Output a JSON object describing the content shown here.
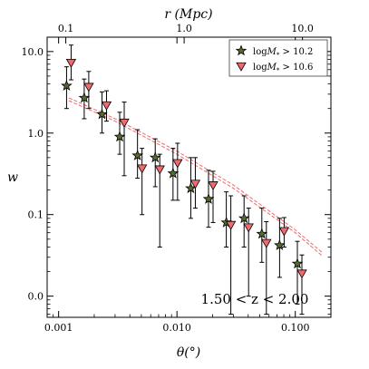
{
  "chart_data": {
    "type": "scatter",
    "xlabel": "θ(°)",
    "ylabel": "w",
    "top_xlabel": "r (Mpc)",
    "annotation": "1.50 < z < 2.00",
    "xscale": "log",
    "yscale": "log",
    "xlim": [
      0.0008,
      0.2
    ],
    "ylim": [
      0.0055,
      15
    ],
    "x_ticks": [
      {
        "value": 0.001,
        "label": "0.001"
      },
      {
        "value": 0.01,
        "label": "0.010"
      },
      {
        "value": 0.1,
        "label": "0.100"
      }
    ],
    "y_ticks": [
      {
        "value": 0.01,
        "label": "0.0"
      },
      {
        "value": 0.1,
        "label": "0.1"
      },
      {
        "value": 1,
        "label": "1.0"
      },
      {
        "value": 10,
        "label": "10.0"
      }
    ],
    "top_ticks": [
      {
        "theta": 0.00115,
        "label": "0.1"
      },
      {
        "theta": 0.0115,
        "label": "1.0"
      },
      {
        "theta": 0.115,
        "label": "10.0"
      }
    ],
    "legend_position": "top-right",
    "series": [
      {
        "name": "logM* > 10.2",
        "legend_main": "log",
        "legend_math": "M",
        "legend_sub": "*",
        "legend_rest": " > 10.2",
        "marker": "star",
        "color": "#556b2f",
        "points": [
          {
            "x": 0.00122,
            "y": 3.8,
            "lo": 2.0,
            "hi": 6.5
          },
          {
            "x": 0.00172,
            "y": 2.7,
            "lo": 1.5,
            "hi": 4.6
          },
          {
            "x": 0.00243,
            "y": 1.7,
            "lo": 1.0,
            "hi": 3.2
          },
          {
            "x": 0.00343,
            "y": 0.9,
            "lo": 0.55,
            "hi": 1.8
          },
          {
            "x": 0.00485,
            "y": 0.53,
            "lo": 0.28,
            "hi": 1.1
          },
          {
            "x": 0.00685,
            "y": 0.5,
            "lo": 0.22,
            "hi": 0.85
          },
          {
            "x": 0.00968,
            "y": 0.32,
            "lo": 0.15,
            "hi": 0.65
          },
          {
            "x": 0.01368,
            "y": 0.21,
            "lo": 0.09,
            "hi": 0.5
          },
          {
            "x": 0.01932,
            "y": 0.155,
            "lo": 0.07,
            "hi": 0.35
          },
          {
            "x": 0.0273,
            "y": 0.08,
            "lo": 0.04,
            "hi": 0.19
          },
          {
            "x": 0.03857,
            "y": 0.09,
            "lo": 0.04,
            "hi": 0.17
          },
          {
            "x": 0.0545,
            "y": 0.058,
            "lo": 0.026,
            "hi": 0.12
          },
          {
            "x": 0.077,
            "y": 0.042,
            "lo": 0.017,
            "hi": 0.09
          },
          {
            "x": 0.1088,
            "y": 0.025,
            "lo": 0.008,
            "hi": 0.047
          }
        ]
      },
      {
        "name": "logM* > 10.6",
        "legend_main": "log",
        "legend_math": "M",
        "legend_sub": "*",
        "legend_rest": " > 10.6",
        "marker": "triangle-down",
        "color": "#ef6a6e",
        "points": [
          {
            "x": 0.00122,
            "y": 7.3,
            "lo": 4.5,
            "hi": 12.0
          },
          {
            "x": 0.00172,
            "y": 3.7,
            "lo": 2.0,
            "hi": 5.7
          },
          {
            "x": 0.00243,
            "y": 2.2,
            "lo": 1.4,
            "hi": 3.3
          },
          {
            "x": 0.00343,
            "y": 1.35,
            "lo": 0.3,
            "hi": 2.4
          },
          {
            "x": 0.00485,
            "y": 0.37,
            "lo": 0.1,
            "hi": 0.65
          },
          {
            "x": 0.00685,
            "y": 0.36,
            "lo": 0.04,
            "hi": 0.55
          },
          {
            "x": 0.00968,
            "y": 0.43,
            "lo": 0.15,
            "hi": 0.75
          },
          {
            "x": 0.01368,
            "y": 0.24,
            "lo": 0.12,
            "hi": 0.5
          },
          {
            "x": 0.01932,
            "y": 0.23,
            "lo": 0.08,
            "hi": 0.34
          },
          {
            "x": 0.0273,
            "y": 0.075,
            "lo": 0.006,
            "hi": 0.17
          },
          {
            "x": 0.03857,
            "y": 0.07,
            "lo": 0.01,
            "hi": 0.12
          },
          {
            "x": 0.0545,
            "y": 0.045,
            "lo": 0.006,
            "hi": 0.082
          },
          {
            "x": 0.077,
            "y": 0.063,
            "lo": 0.04,
            "hi": 0.092
          },
          {
            "x": 0.1088,
            "y": 0.019,
            "lo": 0.006,
            "hi": 0.032
          }
        ]
      }
    ],
    "model_lines": [
      {
        "color": "#ef6a6e",
        "style": "dashed",
        "points": [
          [
            0.00122,
            2.7
          ],
          [
            0.003,
            1.5
          ],
          [
            0.01,
            0.6
          ],
          [
            0.03,
            0.23
          ],
          [
            0.1,
            0.065
          ],
          [
            0.17,
            0.034
          ]
        ]
      },
      {
        "color": "#ef6a6e",
        "style": "dashed",
        "points": [
          [
            0.00122,
            2.5
          ],
          [
            0.003,
            1.4
          ],
          [
            0.01,
            0.55
          ],
          [
            0.03,
            0.21
          ],
          [
            0.1,
            0.06
          ],
          [
            0.17,
            0.031
          ]
        ]
      }
    ]
  }
}
